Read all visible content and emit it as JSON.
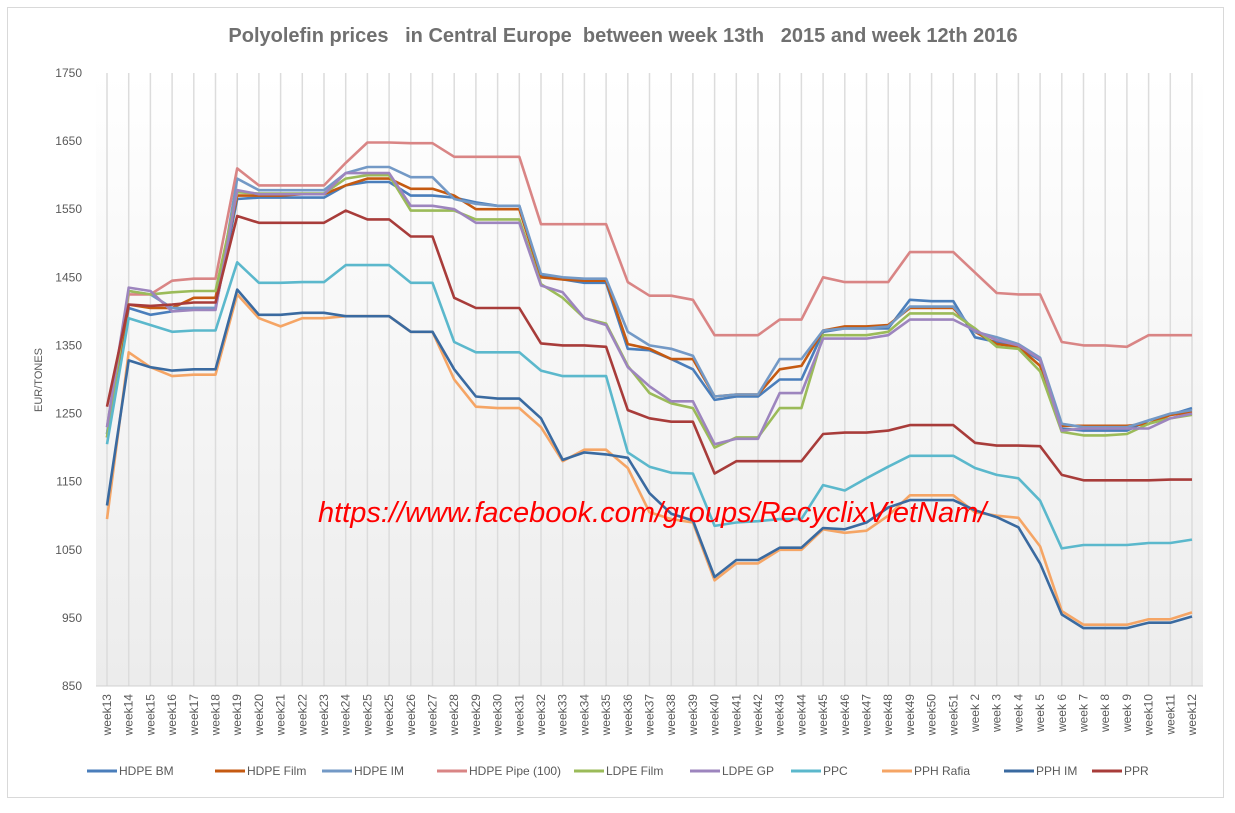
{
  "chart_data": {
    "type": "line",
    "title": "Polyolefin prices   in Central Europe  between week 13th   2015 and week 12th 2016",
    "xlabel": "",
    "ylabel": "EUR/TONES",
    "ylim": [
      850,
      1750
    ],
    "yticks": [
      850,
      950,
      1050,
      1150,
      1250,
      1350,
      1450,
      1550,
      1650,
      1750
    ],
    "grid": "vertical",
    "legend": "bottom",
    "annotation": "https://www.facebook.com/groups/RecyclixVietNam/",
    "categories": [
      "week13",
      "week14",
      "week15",
      "week16",
      "week17",
      "week18",
      "week19",
      "week20",
      "week21",
      "week22",
      "week23",
      "week24",
      "week25",
      "week25",
      "week26",
      "week27",
      "week28",
      "week29",
      "week30",
      "week31",
      "week32",
      "week33",
      "week34",
      "week35",
      "week36",
      "week37",
      "week38",
      "week39",
      "week40",
      "week41",
      "week42",
      "week43",
      "week44",
      "week45",
      "week46",
      "week47",
      "week48",
      "week49",
      "week50",
      "week51",
      "week 2",
      "week 3",
      "week 4",
      "week 5",
      "week 6",
      "week 7",
      "week 8",
      "week 9",
      "week10",
      "week11",
      "week12"
    ],
    "series": [
      {
        "name": "HDPE BM",
        "color": "#4a7ebb",
        "values": [
          1220,
          1405,
          1395,
          1400,
          1405,
          1405,
          1565,
          1567,
          1567,
          1567,
          1567,
          1585,
          1590,
          1590,
          1570,
          1570,
          1567,
          1560,
          1555,
          1555,
          1452,
          1447,
          1442,
          1442,
          1345,
          1343,
          1330,
          1315,
          1270,
          1275,
          1275,
          1300,
          1300,
          1370,
          1375,
          1375,
          1375,
          1417,
          1415,
          1415,
          1362,
          1355,
          1348,
          1328,
          1228,
          1225,
          1225,
          1225,
          1240,
          1248,
          1258
        ]
      },
      {
        "name": "HDPE Film",
        "color": "#c55a11",
        "values": [
          1215,
          1410,
          1405,
          1405,
          1420,
          1420,
          1570,
          1570,
          1570,
          1572,
          1572,
          1585,
          1595,
          1595,
          1580,
          1580,
          1570,
          1550,
          1550,
          1550,
          1450,
          1447,
          1445,
          1445,
          1352,
          1345,
          1330,
          1330,
          1275,
          1278,
          1278,
          1315,
          1320,
          1372,
          1378,
          1378,
          1380,
          1405,
          1405,
          1405,
          1370,
          1352,
          1348,
          1320,
          1232,
          1232,
          1232,
          1232,
          1235,
          1248,
          1252
        ]
      },
      {
        "name": "HDPE IM",
        "color": "#7399c6",
        "values": [
          1220,
          1430,
          1425,
          1405,
          1405,
          1405,
          1595,
          1578,
          1578,
          1578,
          1578,
          1603,
          1612,
          1612,
          1597,
          1597,
          1565,
          1558,
          1555,
          1555,
          1455,
          1450,
          1448,
          1448,
          1370,
          1350,
          1345,
          1335,
          1275,
          1278,
          1278,
          1330,
          1330,
          1372,
          1375,
          1375,
          1378,
          1407,
          1407,
          1407,
          1370,
          1362,
          1352,
          1332,
          1235,
          1230,
          1230,
          1230,
          1240,
          1250,
          1255
        ]
      },
      {
        "name": "HDPE Pipe (100)",
        "color": "#d98585",
        "values": [
          1230,
          1425,
          1425,
          1445,
          1448,
          1448,
          1610,
          1585,
          1585,
          1585,
          1585,
          1618,
          1648,
          1648,
          1647,
          1647,
          1627,
          1627,
          1627,
          1627,
          1528,
          1528,
          1528,
          1528,
          1443,
          1423,
          1423,
          1417,
          1365,
          1365,
          1365,
          1388,
          1388,
          1450,
          1443,
          1443,
          1443,
          1487,
          1487,
          1487,
          1457,
          1427,
          1425,
          1425,
          1355,
          1350,
          1350,
          1348,
          1365,
          1365,
          1365
        ]
      },
      {
        "name": "LDPE Film",
        "color": "#9bbb59",
        "values": [
          1215,
          1430,
          1425,
          1428,
          1430,
          1430,
          1575,
          1573,
          1573,
          1573,
          1573,
          1595,
          1600,
          1600,
          1548,
          1548,
          1548,
          1535,
          1535,
          1535,
          1440,
          1420,
          1390,
          1382,
          1320,
          1280,
          1265,
          1258,
          1200,
          1215,
          1215,
          1258,
          1258,
          1365,
          1365,
          1365,
          1370,
          1397,
          1397,
          1397,
          1375,
          1348,
          1345,
          1312,
          1223,
          1218,
          1218,
          1220,
          1235,
          1243,
          1248
        ]
      },
      {
        "name": "LDPE GP",
        "color": "#9d85be",
        "values": [
          1230,
          1435,
          1430,
          1400,
          1402,
          1402,
          1578,
          1572,
          1572,
          1572,
          1572,
          1603,
          1603,
          1603,
          1555,
          1555,
          1550,
          1530,
          1530,
          1530,
          1438,
          1428,
          1390,
          1380,
          1318,
          1290,
          1268,
          1268,
          1205,
          1213,
          1213,
          1280,
          1280,
          1360,
          1360,
          1360,
          1365,
          1388,
          1388,
          1388,
          1372,
          1358,
          1350,
          1330,
          1225,
          1228,
          1228,
          1228,
          1228,
          1243,
          1250
        ]
      },
      {
        "name": "PPC",
        "color": "#5bb8cc",
        "values": [
          1205,
          1390,
          1380,
          1370,
          1372,
          1372,
          1472,
          1442,
          1442,
          1443,
          1443,
          1468,
          1468,
          1468,
          1442,
          1442,
          1355,
          1340,
          1340,
          1340,
          1313,
          1305,
          1305,
          1305,
          1193,
          1172,
          1163,
          1162,
          1085,
          1090,
          1092,
          1095,
          1095,
          1145,
          1137,
          1155,
          1172,
          1188,
          1188,
          1188,
          1170,
          1160,
          1155,
          1122,
          1052,
          1057,
          1057,
          1057,
          1060,
          1060,
          1065
        ]
      },
      {
        "name": "PPH Rafia",
        "color": "#f5a565",
        "values": [
          1095,
          1340,
          1318,
          1305,
          1307,
          1307,
          1425,
          1390,
          1378,
          1390,
          1390,
          1393,
          1393,
          1393,
          1370,
          1370,
          1300,
          1260,
          1258,
          1258,
          1230,
          1180,
          1197,
          1197,
          1170,
          1105,
          1095,
          1090,
          1005,
          1030,
          1030,
          1050,
          1050,
          1080,
          1075,
          1078,
          1100,
          1130,
          1130,
          1130,
          1105,
          1100,
          1097,
          1055,
          960,
          940,
          940,
          940,
          948,
          948,
          958
        ]
      },
      {
        "name": "PPH IM",
        "color": "#3a6aa0",
        "values": [
          1115,
          1328,
          1318,
          1313,
          1315,
          1315,
          1432,
          1395,
          1395,
          1398,
          1398,
          1393,
          1393,
          1393,
          1370,
          1370,
          1315,
          1275,
          1272,
          1272,
          1243,
          1182,
          1193,
          1190,
          1185,
          1133,
          1103,
          1093,
          1010,
          1035,
          1035,
          1053,
          1053,
          1082,
          1080,
          1090,
          1112,
          1123,
          1123,
          1123,
          1108,
          1098,
          1083,
          1030,
          955,
          935,
          935,
          935,
          943,
          943,
          952
        ]
      },
      {
        "name": "PPR",
        "color": "#a83c3a",
        "values": [
          1260,
          1410,
          1408,
          1410,
          1413,
          1413,
          1540,
          1530,
          1530,
          1530,
          1530,
          1548,
          1535,
          1535,
          1510,
          1510,
          1420,
          1405,
          1405,
          1405,
          1353,
          1350,
          1350,
          1348,
          1255,
          1243,
          1238,
          1238,
          1162,
          1180,
          1180,
          1180,
          1180,
          1220,
          1222,
          1222,
          1225,
          1233,
          1233,
          1233,
          1207,
          1203,
          1203,
          1202,
          1160,
          1152,
          1152,
          1152,
          1152,
          1153,
          1153
        ]
      }
    ]
  }
}
